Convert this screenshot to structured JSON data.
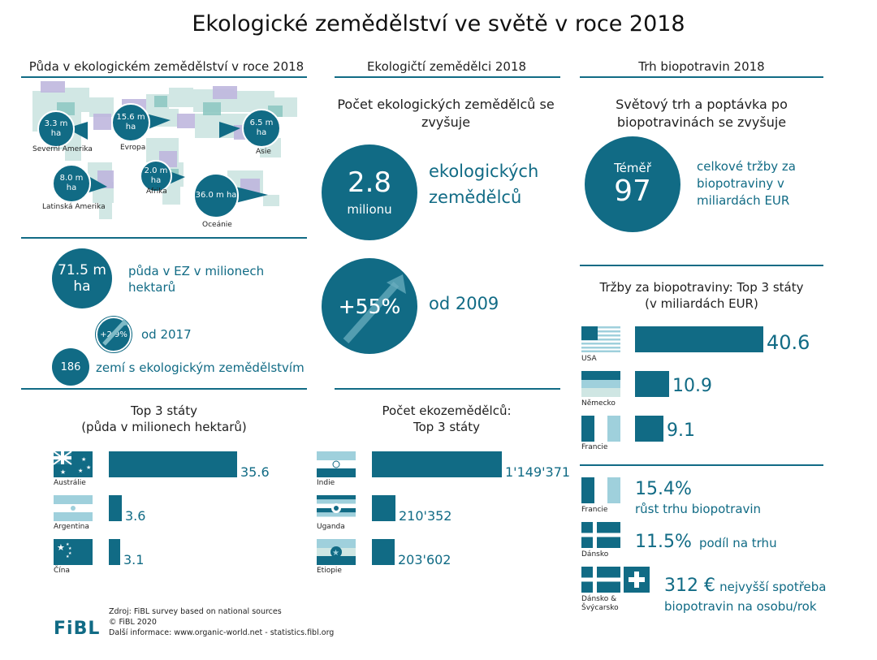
{
  "title": "Ekologické zemědělství ve světě v roce 2018",
  "col1": {
    "header": "Půda v ekologickém zemědělství v roce 2018",
    "regions": [
      {
        "value": "3.3 m ha",
        "name": "Severní Amerika"
      },
      {
        "value": "15.6 m ha",
        "name": "Evropa"
      },
      {
        "value": "6.5 m ha",
        "name": "Asie"
      },
      {
        "value": "8.0 m ha",
        "name": "Latinská Amerika"
      },
      {
        "value": "2.0 m ha",
        "name": "Afrika"
      },
      {
        "value": "36.0 m ha",
        "name": "Oceánie"
      }
    ],
    "land_total": "71.5 m ha",
    "land_total_text": "půda v EZ v milionech hektarů",
    "growth": "+2.9%",
    "growth_text": "od 2017",
    "countries_count": "186",
    "countries_text": "zemí s ekologickým zemědělstvím",
    "top3_title_1": "Top 3 státy",
    "top3_title_2": "(půda v milionech hektarů)"
  },
  "col2": {
    "header": "Ekologičtí zemědělci 2018",
    "subhead": "Počet ekologických zemědělců se zvyšuje",
    "farmers_value": "2.8",
    "farmers_unit": "milionu",
    "farmers_text": "ekologických zemědělců",
    "growth_value": "+55%",
    "growth_text": "od 2009",
    "top3_title_1": "Počet ekozemědělců:",
    "top3_title_2": "Top 3 státy"
  },
  "col3": {
    "header": "Trh biopotravin 2018",
    "subhead": "Světový trh a poptávka po biopotravinách se zvyšuje",
    "sales_prefix": "Téměř",
    "sales_value": "97",
    "sales_text": "celkové tržby za biopotraviny v miliardách EUR",
    "top3_title_1": "Tržby za biopotraviny: Top 3 státy",
    "top3_title_2": "(v miliardách EUR)",
    "facts": [
      {
        "country": "Francie",
        "value": "15.4%",
        "text": "růst trhu biopotravin"
      },
      {
        "country": "Dánsko",
        "value": "11.5%",
        "text": "podíl na trhu"
      },
      {
        "country": "Dánsko & Švýcarsko",
        "value": "312 €",
        "text": "nejvyšší spotřeba biopotravin na osobu/rok"
      }
    ]
  },
  "footer": {
    "logo": "FiBL",
    "line1": "Zdroj: FiBL survey based on national sources",
    "line2": "© FiBL 2020",
    "line3": "Další informace: www.organic-world.net - statistics.fibl.org"
  },
  "chart_data": [
    {
      "type": "bar",
      "title": "Top 3 státy (půda v milionech hektarů)",
      "categories": [
        "Austrálie",
        "Argentina",
        "Čína"
      ],
      "values": [
        35.6,
        3.6,
        3.1
      ],
      "labels": [
        "35.6",
        "3.6",
        "3.1"
      ]
    },
    {
      "type": "bar",
      "title": "Počet ekozemědělců: Top 3 státy",
      "categories": [
        "Indie",
        "Uganda",
        "Etiopie"
      ],
      "values": [
        1149371,
        210352,
        203602
      ],
      "labels": [
        "1'149'371",
        "210'352",
        "203'602"
      ]
    },
    {
      "type": "bar",
      "title": "Tržby za biopotraviny: Top 3 státy (v miliardách EUR)",
      "categories": [
        "USA",
        "Německo",
        "Francie"
      ],
      "values": [
        40.6,
        10.9,
        9.1
      ],
      "labels": [
        "40.6",
        "10.9",
        "9.1"
      ]
    }
  ]
}
